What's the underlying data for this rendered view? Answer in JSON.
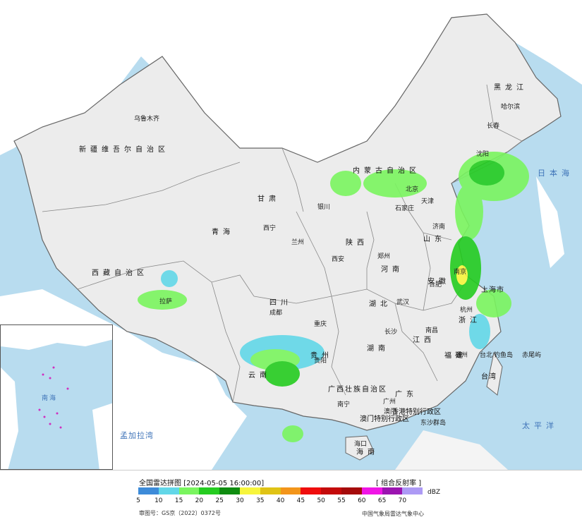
{
  "title": "全国雷达拼图 [2024-05-05 16:00:00]",
  "product": "[ 组合反射率 ]",
  "legend": {
    "unit": "dBZ",
    "ticks": [
      "5",
      "10",
      "15",
      "20",
      "25",
      "30",
      "35",
      "40",
      "45",
      "50",
      "55",
      "60",
      "65",
      "70"
    ],
    "colors": [
      "#3d8bd9",
      "#62d7e8",
      "#7af55f",
      "#25cc20",
      "#0f8c10",
      "#f7f53c",
      "#e0c315",
      "#f3951a",
      "#ef0d0d",
      "#c40a0a",
      "#a50a0a",
      "#f015e6",
      "#9b14b0",
      "#ad9af5"
    ]
  },
  "approval_number": "审图号：GS京（2022）0372号",
  "agency": "中国气象局雷达气象中心",
  "map": {
    "regions": [
      {
        "name": "新疆维吾尔自治区",
        "type": "prov"
      },
      {
        "name": "西藏自治区",
        "type": "prov"
      },
      {
        "name": "青海",
        "type": "prov"
      },
      {
        "name": "甘肃",
        "type": "prov"
      },
      {
        "name": "内蒙古自治区",
        "type": "prov"
      },
      {
        "name": "黑龙江",
        "type": "prov"
      },
      {
        "name": "四川",
        "type": "prov"
      },
      {
        "name": "云南",
        "type": "prov"
      },
      {
        "name": "贵州",
        "type": "prov"
      },
      {
        "name": "湖南",
        "type": "prov"
      },
      {
        "name": "湖北",
        "type": "prov"
      },
      {
        "name": "河南",
        "type": "prov"
      },
      {
        "name": "陕西",
        "type": "prov"
      },
      {
        "name": "山东",
        "type": "prov"
      },
      {
        "name": "安徽",
        "type": "prov"
      },
      {
        "name": "江西",
        "type": "prov"
      },
      {
        "name": "福建",
        "type": "prov"
      },
      {
        "name": "广东",
        "type": "prov"
      },
      {
        "name": "广西壮族自治区",
        "type": "prov"
      },
      {
        "name": "海南",
        "type": "prov"
      },
      {
        "name": "浙江",
        "type": "prov"
      },
      {
        "name": "上海市",
        "type": "prov"
      },
      {
        "name": "台湾",
        "type": "prov"
      },
      {
        "name": "香港特别行政区",
        "type": "prov"
      },
      {
        "name": "澳门特别行政区",
        "type": "prov"
      }
    ],
    "cities": [
      "乌鲁木齐",
      "哈尔滨",
      "长春",
      "沈阳",
      "北京",
      "天津",
      "石家庄",
      "银川",
      "兰州",
      "西宁",
      "西安",
      "郑州",
      "济南",
      "合肥",
      "南京",
      "武汉",
      "杭州",
      "拉萨",
      "成都",
      "重庆",
      "贵阳",
      "长沙",
      "南昌",
      "福州",
      "南宁",
      "广州",
      "澳门",
      "海口",
      "台北"
    ],
    "seas": [
      "日本海",
      "太平洋",
      "孟加拉湾",
      "南海"
    ],
    "islands": [
      "钓鱼岛",
      "赤尾屿",
      "东沙群岛"
    ]
  }
}
